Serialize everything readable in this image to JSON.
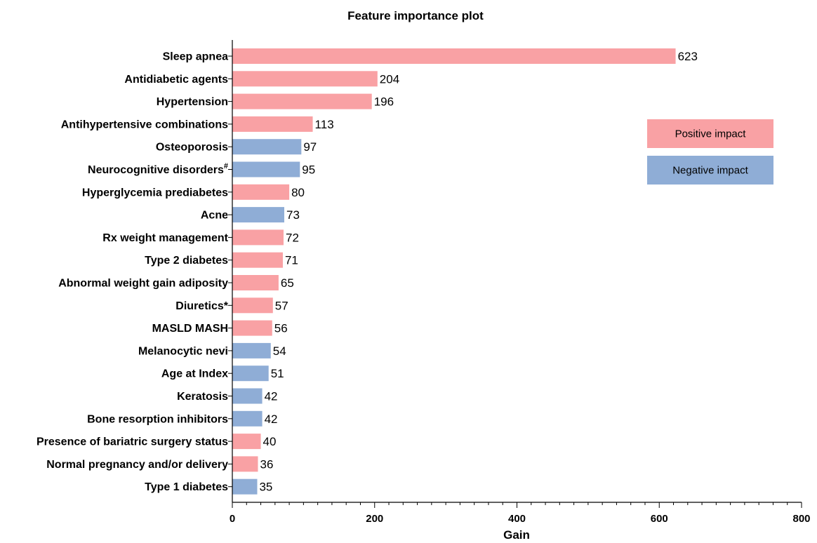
{
  "chart_data": {
    "type": "bar",
    "orientation": "horizontal",
    "title": "Feature importance plot",
    "xlabel": "Gain",
    "ylabel": "",
    "xlim": [
      0,
      800
    ],
    "x_ticks": [
      0,
      200,
      400,
      600,
      800
    ],
    "grid": false,
    "legend_position": "right",
    "colors": {
      "positive": "#F9A1A4",
      "negative": "#8FADD6"
    },
    "legend": [
      {
        "label": "Positive impact",
        "impact": "positive"
      },
      {
        "label": "Negative impact",
        "impact": "negative"
      }
    ],
    "categories": [
      "Sleep apnea",
      "Antidiabetic agents",
      "Hypertension",
      "Antihypertensive combinations",
      "Osteoporosis",
      "Neurocognitive disorders",
      "Hyperglycemia prediabetes",
      "Acne",
      "Rx weight management",
      "Type 2 diabetes",
      "Abnormal weight gain adiposity",
      "Diuretics*",
      "MASLD MASH",
      "Melanocytic nevi",
      "Age at Index",
      "Keratosis",
      "Bone resorption inhibitors",
      "Presence of bariatric surgery status",
      "Normal pregnancy and/or delivery",
      "Type 1 diabetes"
    ],
    "superscripts": [
      "",
      "",
      "",
      "",
      "",
      "#",
      "",
      "",
      "",
      "",
      "",
      "",
      "",
      "",
      "",
      "",
      "",
      "",
      "",
      ""
    ],
    "values": [
      623,
      204,
      196,
      113,
      97,
      95,
      80,
      73,
      72,
      71,
      65,
      57,
      56,
      54,
      51,
      42,
      42,
      40,
      36,
      35
    ],
    "impact": [
      "positive",
      "positive",
      "positive",
      "positive",
      "negative",
      "negative",
      "positive",
      "negative",
      "positive",
      "positive",
      "positive",
      "positive",
      "positive",
      "negative",
      "negative",
      "negative",
      "negative",
      "positive",
      "positive",
      "negative"
    ]
  }
}
